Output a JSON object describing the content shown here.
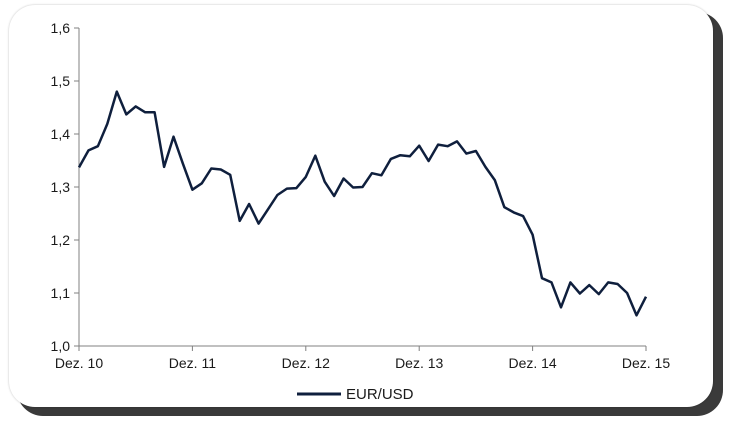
{
  "chart_data": {
    "type": "line",
    "title": "",
    "xlabel": "",
    "ylabel": "",
    "ylim": [
      1.0,
      1.6
    ],
    "y_ticks": [
      "1,0",
      "1,1",
      "1,2",
      "1,3",
      "1,4",
      "1,5",
      "1,6"
    ],
    "y_tick_values": [
      1.0,
      1.1,
      1.2,
      1.3,
      1.4,
      1.5,
      1.6
    ],
    "x_ticks": [
      "Dez. 10",
      "Dez. 11",
      "Dez. 12",
      "Dez. 13",
      "Dez. 14",
      "Dez. 15"
    ],
    "x_tick_indices": [
      0,
      12,
      24,
      36,
      48,
      60
    ],
    "grid": false,
    "legend_position": "bottom-center",
    "series": [
      {
        "name": "EUR/USD",
        "color": "#0f1f3d",
        "values": [
          1.337,
          1.369,
          1.377,
          1.419,
          1.48,
          1.437,
          1.452,
          1.441,
          1.441,
          1.338,
          1.395,
          1.344,
          1.295,
          1.307,
          1.335,
          1.333,
          1.323,
          1.236,
          1.268,
          1.231,
          1.258,
          1.285,
          1.297,
          1.298,
          1.319,
          1.359,
          1.31,
          1.283,
          1.316,
          1.299,
          1.3,
          1.326,
          1.322,
          1.353,
          1.36,
          1.358,
          1.378,
          1.349,
          1.38,
          1.377,
          1.386,
          1.363,
          1.368,
          1.338,
          1.313,
          1.262,
          1.252,
          1.245,
          1.21,
          1.128,
          1.12,
          1.073,
          1.12,
          1.099,
          1.115,
          1.098,
          1.12,
          1.117,
          1.1,
          1.058,
          1.093
        ]
      }
    ]
  }
}
